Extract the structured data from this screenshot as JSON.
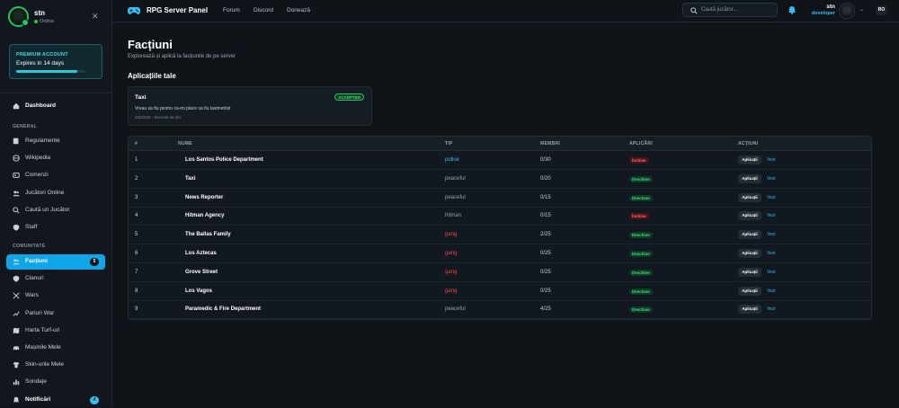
{
  "sidebar": {
    "user": {
      "name": "stn",
      "status": "Online"
    },
    "premium": {
      "title": "PREMIUM ACCOUNT",
      "subtitle": "Expires in 14 days",
      "progress": 0.88
    },
    "dashboard": "Dashboard",
    "section_general": "GENERAL",
    "general": [
      {
        "label": "Regulamente",
        "icon": "book-icon"
      },
      {
        "label": "Wikipedia",
        "icon": "globe-icon"
      },
      {
        "label": "Comenzi",
        "icon": "terminal-icon"
      },
      {
        "label": "Jucători Online",
        "icon": "users-icon"
      },
      {
        "label": "Caută un Jucător",
        "icon": "search-icon"
      },
      {
        "label": "Staff",
        "icon": "shield-icon"
      }
    ],
    "section_community": "COMUNITATE",
    "community": [
      {
        "label": "Facțiuni",
        "icon": "users-icon",
        "badge": "5",
        "active": true
      },
      {
        "label": "Clanuri",
        "icon": "shield-icon"
      },
      {
        "label": "Wars",
        "icon": "swords-icon"
      },
      {
        "label": "Pariuri War",
        "icon": "trend-icon"
      },
      {
        "label": "Harta Turf-uri",
        "icon": "map-icon"
      },
      {
        "label": "Mașinile Mele",
        "icon": "car-icon"
      },
      {
        "label": "Skin-urile Mele",
        "icon": "shirt-icon"
      },
      {
        "label": "Sondaje",
        "icon": "poll-icon"
      },
      {
        "label": "Notificări",
        "icon": "bell-icon",
        "badge": "4",
        "bold": true
      }
    ]
  },
  "topbar": {
    "brand": "RPG Server Panel",
    "nav": [
      "Forum",
      "Discord",
      "Donează"
    ],
    "search_placeholder": "Caută jucător...",
    "user_name": "stn",
    "user_role": "developer",
    "lang": "RO"
  },
  "page": {
    "title": "Facțiuni",
    "subtitle": "Explorează și aplică la facțiunile de pe server",
    "apps_title": "Aplicațiile tale"
  },
  "application": {
    "name": "Taxi",
    "status": "ACCEPTED",
    "message": "Vreau sa fiu pentru ca-mi place sa fiu taximetrist",
    "meta": "3/3/2026 · Revizuit de stn"
  },
  "table": {
    "headers": [
      "#",
      "NUME",
      "TIP",
      "MEMBRI",
      "APLICĂRI",
      "ACȚIUNI"
    ],
    "apply_label": "Aplicații",
    "view_label": "Vezi",
    "rows": [
      {
        "id": "1",
        "name": "Los Santos Police Department",
        "type": "police",
        "members": "0/30",
        "status": "Închise",
        "open": false
      },
      {
        "id": "2",
        "name": "Taxi",
        "type": "peaceful",
        "members": "0/20",
        "status": "Deschise",
        "open": true
      },
      {
        "id": "3",
        "name": "News Reporter",
        "type": "peaceful",
        "members": "0/15",
        "status": "Deschise",
        "open": true
      },
      {
        "id": "4",
        "name": "Hitman Agency",
        "type": "hitman",
        "members": "0/15",
        "status": "Închise",
        "open": false
      },
      {
        "id": "5",
        "name": "The Ballas Family",
        "type": "gang",
        "members": "2/25",
        "status": "Deschise",
        "open": true
      },
      {
        "id": "6",
        "name": "Los Aztecas",
        "type": "gang",
        "members": "0/25",
        "status": "Deschise",
        "open": true
      },
      {
        "id": "7",
        "name": "Grove Street",
        "type": "gang",
        "members": "0/25",
        "status": "Deschise",
        "open": true
      },
      {
        "id": "8",
        "name": "Los Vagos",
        "type": "gang",
        "members": "0/25",
        "status": "Deschise",
        "open": true
      },
      {
        "id": "9",
        "name": "Paramedic & Fire Department",
        "type": "peaceful",
        "members": "4/25",
        "status": "Deschise",
        "open": true
      }
    ]
  },
  "colors": {
    "accent": "#0ea5e9",
    "open": "#4ade80",
    "closed": "#f87171",
    "gang": "#ef4444",
    "police": "#38bdf8"
  }
}
